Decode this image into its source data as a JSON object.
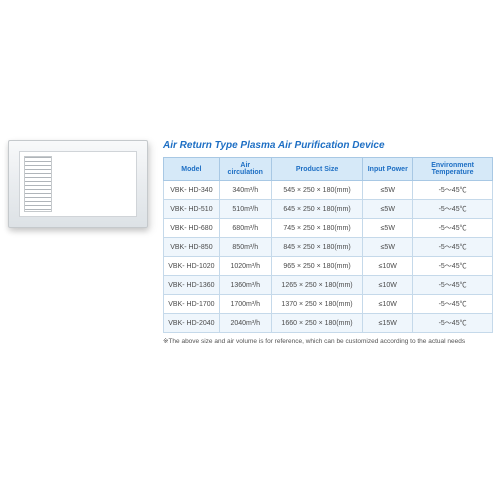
{
  "title": "Air  Return Type Plasma Air Purification Device",
  "table": {
    "columns": [
      "Model",
      "Air circulation",
      "Product Size",
      "Input Power",
      "Environment Temperature"
    ],
    "rows": [
      [
        "VBK- HD-340",
        "340m³/h",
        "545 × 250 × 180(mm)",
        "≤5W",
        "-5～45℃"
      ],
      [
        "VBK- HD-510",
        "510m³/h",
        "645 × 250 × 180(mm)",
        "≤5W",
        "-5～45℃"
      ],
      [
        "VBK- HD-680",
        "680m³/h",
        "745 × 250 × 180(mm)",
        "≤5W",
        "-5～45℃"
      ],
      [
        "VBK- HD-850",
        "850m³/h",
        "845 × 250 × 180(mm)",
        "≤5W",
        "-5～45℃"
      ],
      [
        "VBK- HD-1020",
        "1020m³/h",
        "965 × 250 × 180(mm)",
        "≤10W",
        "-5～45℃"
      ],
      [
        "VBK- HD-1360",
        "1360m³/h",
        "1265 × 250 × 180(mm)",
        "≤10W",
        "-5～45℃"
      ],
      [
        "VBK- HD-1700",
        "1700m³/h",
        "1370 × 250 × 180(mm)",
        "≤10W",
        "-5～45℃"
      ],
      [
        "VBK- HD-2040",
        "2040m³/h",
        "1660 × 250 × 180(mm)",
        "≤15W",
        "-5～45℃"
      ]
    ],
    "header_bg": "#d6e9f8",
    "header_color": "#1e6fc4",
    "border_color": "#a8c8e4",
    "row_even_bg": "#eff6fc",
    "row_odd_bg": "#ffffff",
    "cell_color": "#4a4a4a"
  },
  "footnote": "※The above size and air volume is for reference, which can be customized according to the actual needs",
  "colors": {
    "title": "#1e6fc4",
    "background": "#ffffff"
  }
}
